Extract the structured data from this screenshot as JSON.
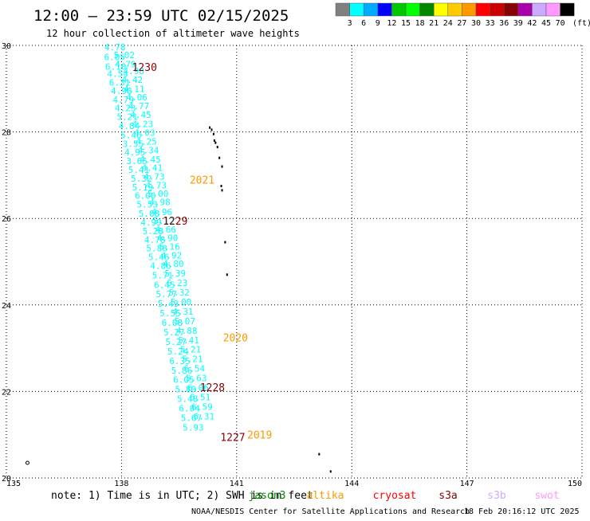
{
  "header": {
    "title": "12:00 — 23:59 UTC 02/15/2025",
    "subtitle": "12 hour collection of altimeter wave heights"
  },
  "colorbar": {
    "unit": "(ft)",
    "labels": [
      "3",
      "6",
      "9",
      "12",
      "15",
      "18",
      "21",
      "24",
      "27",
      "30",
      "33",
      "36",
      "39",
      "42",
      "45",
      "70"
    ],
    "colors": [
      "#808080",
      "#00ffff",
      "#00aaff",
      "#0000ff",
      "#00c800",
      "#00ff00",
      "#008800",
      "#ffff00",
      "#ffcc00",
      "#ff9900",
      "#ff0000",
      "#cc0000",
      "#880000",
      "#aa00aa",
      "#ccaaff",
      "#ff99ff",
      "#000000"
    ]
  },
  "footer": {
    "note": "note: 1) Time is in UTC; 2) SWH is in feet",
    "credit": "NOAA/NESDIS Center for Satellite Applications and Research",
    "timestamp": "18 Feb 20:16:12 UTC 2025",
    "satellites": [
      {
        "name": "jason3",
        "color": "#008800"
      },
      {
        "name": "altika",
        "color": "#ff9900"
      },
      {
        "name": "cryosat",
        "color": "#ff0000"
      },
      {
        "name": "s3a",
        "color": "#880000"
      },
      {
        "name": "s3b",
        "color": "#ccaaff"
      },
      {
        "name": "swot",
        "color": "#ff99ff"
      }
    ]
  },
  "chart_data": {
    "type": "scatter",
    "title": "12:00 — 23:59 UTC 02/15/2025",
    "subtitle": "12 hour collection of altimeter wave heights",
    "xlim": [
      135,
      150
    ],
    "ylim": [
      20,
      30
    ],
    "xticks": [
      "135",
      "138",
      "141",
      "144",
      "147",
      "150"
    ],
    "yticks": [
      "20",
      "22",
      "24",
      "26",
      "28",
      "30"
    ],
    "grid": true,
    "legend": "bottom",
    "wave_color": "#00ffff",
    "land_color": "#000000",
    "series": [
      {
        "name": "",
        "color": "#00ffff",
        "points": [
          {
            "x": 137.83,
            "y": 29.96,
            "v": "4.78"
          },
          {
            "x": 138.07,
            "y": 29.78,
            "v": "5.02"
          },
          {
            "x": 137.82,
            "y": 29.73,
            "v": "6.05"
          },
          {
            "x": 138.1,
            "y": 29.57,
            "v": "4.79"
          },
          {
            "x": 137.85,
            "y": 29.51,
            "v": "6.10"
          },
          {
            "x": 138.32,
            "y": 29.41,
            "v": "4.98"
          },
          {
            "x": 137.9,
            "y": 29.35,
            "v": "4.54"
          },
          {
            "x": 138.28,
            "y": 29.21,
            "v": "4.42"
          },
          {
            "x": 137.95,
            "y": 29.14,
            "v": "6.31"
          },
          {
            "x": 138.33,
            "y": 29.0,
            "v": "4.11"
          },
          {
            "x": 138.0,
            "y": 28.95,
            "v": "4.98"
          },
          {
            "x": 138.4,
            "y": 28.8,
            "v": "4.06"
          },
          {
            "x": 138.05,
            "y": 28.75,
            "v": "4.79"
          },
          {
            "x": 138.45,
            "y": 28.6,
            "v": "4.77"
          },
          {
            "x": 138.1,
            "y": 28.55,
            "v": "4.23"
          },
          {
            "x": 138.5,
            "y": 28.4,
            "v": "4.45"
          },
          {
            "x": 138.15,
            "y": 28.35,
            "v": "5.21"
          },
          {
            "x": 138.55,
            "y": 28.19,
            "v": "4.23"
          },
          {
            "x": 138.2,
            "y": 28.14,
            "v": "4.84"
          },
          {
            "x": 138.6,
            "y": 27.98,
            "v": "4.03"
          },
          {
            "x": 138.25,
            "y": 27.93,
            "v": "5.40"
          },
          {
            "x": 138.65,
            "y": 27.78,
            "v": "4.25"
          },
          {
            "x": 138.3,
            "y": 27.73,
            "v": "3.55"
          },
          {
            "x": 138.7,
            "y": 27.58,
            "v": "4.34"
          },
          {
            "x": 138.35,
            "y": 27.53,
            "v": "4.95"
          },
          {
            "x": 138.75,
            "y": 27.37,
            "v": "4.45"
          },
          {
            "x": 138.4,
            "y": 27.33,
            "v": "3.65"
          },
          {
            "x": 138.8,
            "y": 27.17,
            "v": "4.41"
          },
          {
            "x": 138.45,
            "y": 27.13,
            "v": "5.41"
          },
          {
            "x": 138.85,
            "y": 26.97,
            "v": "4.73"
          },
          {
            "x": 138.52,
            "y": 26.92,
            "v": "5.32"
          },
          {
            "x": 138.9,
            "y": 26.77,
            "v": "4.73"
          },
          {
            "x": 138.55,
            "y": 26.72,
            "v": "5.19"
          },
          {
            "x": 138.95,
            "y": 26.57,
            "v": "5.00"
          },
          {
            "x": 138.62,
            "y": 26.53,
            "v": "6.00"
          },
          {
            "x": 139.0,
            "y": 26.38,
            "v": "4.98"
          },
          {
            "x": 138.67,
            "y": 26.33,
            "v": "5.53"
          },
          {
            "x": 139.05,
            "y": 26.15,
            "v": "4.96"
          },
          {
            "x": 138.72,
            "y": 26.11,
            "v": "5.08"
          },
          {
            "x": 139.1,
            "y": 25.95,
            "v": "5.12"
          },
          {
            "x": 138.77,
            "y": 25.91,
            "v": "4.99"
          },
          {
            "x": 139.15,
            "y": 25.75,
            "v": "4.66"
          },
          {
            "x": 138.82,
            "y": 25.71,
            "v": "5.28"
          },
          {
            "x": 139.2,
            "y": 25.55,
            "v": "4.90"
          },
          {
            "x": 138.87,
            "y": 25.51,
            "v": "4.78"
          },
          {
            "x": 139.25,
            "y": 25.35,
            "v": "5.16"
          },
          {
            "x": 138.92,
            "y": 25.31,
            "v": "5.88"
          },
          {
            "x": 139.3,
            "y": 25.15,
            "v": "4.92"
          },
          {
            "x": 138.97,
            "y": 25.11,
            "v": "5.46"
          },
          {
            "x": 139.35,
            "y": 24.95,
            "v": "4.80"
          },
          {
            "x": 139.02,
            "y": 24.91,
            "v": "4.86"
          },
          {
            "x": 139.4,
            "y": 24.73,
            "v": "5.39"
          },
          {
            "x": 139.07,
            "y": 24.69,
            "v": "5.71"
          },
          {
            "x": 139.45,
            "y": 24.51,
            "v": "6.23"
          },
          {
            "x": 139.12,
            "y": 24.47,
            "v": "6.45"
          },
          {
            "x": 139.5,
            "y": 24.29,
            "v": "5.32"
          },
          {
            "x": 139.17,
            "y": 24.25,
            "v": "5.77"
          },
          {
            "x": 139.55,
            "y": 24.07,
            "v": "5.00"
          },
          {
            "x": 139.22,
            "y": 24.03,
            "v": "5.43"
          },
          {
            "x": 139.6,
            "y": 23.85,
            "v": "4.31"
          },
          {
            "x": 139.27,
            "y": 23.81,
            "v": "5.55"
          },
          {
            "x": 139.65,
            "y": 23.63,
            "v": "5.07"
          },
          {
            "x": 139.32,
            "y": 23.59,
            "v": "6.08"
          },
          {
            "x": 139.7,
            "y": 23.41,
            "v": "4.88"
          },
          {
            "x": 139.37,
            "y": 23.37,
            "v": "5.27"
          },
          {
            "x": 139.75,
            "y": 23.19,
            "v": "5.41"
          },
          {
            "x": 139.42,
            "y": 23.15,
            "v": "5.27"
          },
          {
            "x": 139.8,
            "y": 22.97,
            "v": "5.21"
          },
          {
            "x": 139.47,
            "y": 22.93,
            "v": "5.24"
          },
          {
            "x": 139.85,
            "y": 22.75,
            "v": "5.21"
          },
          {
            "x": 139.52,
            "y": 22.71,
            "v": "6.35"
          },
          {
            "x": 139.9,
            "y": 22.53,
            "v": "6.54"
          },
          {
            "x": 139.57,
            "y": 22.49,
            "v": "5.86"
          },
          {
            "x": 139.95,
            "y": 22.31,
            "v": "5.63"
          },
          {
            "x": 139.62,
            "y": 22.27,
            "v": "6.05"
          },
          {
            "x": 140.0,
            "y": 22.09,
            "v": "6.06"
          },
          {
            "x": 139.67,
            "y": 22.05,
            "v": "5.80"
          },
          {
            "x": 140.05,
            "y": 21.87,
            "v": "6.51"
          },
          {
            "x": 139.72,
            "y": 21.83,
            "v": "5.48"
          },
          {
            "x": 140.1,
            "y": 21.65,
            "v": "6.59"
          },
          {
            "x": 139.77,
            "y": 21.61,
            "v": "6.04"
          },
          {
            "x": 140.15,
            "y": 21.43,
            "v": "6.31"
          },
          {
            "x": 139.82,
            "y": 21.39,
            "v": "5.67"
          },
          {
            "x": 139.87,
            "y": 21.17,
            "v": "5.93"
          }
        ]
      }
    ],
    "time_labels": [
      {
        "text": "1230",
        "x": 138.6,
        "y": 29.5,
        "color": "#880000"
      },
      {
        "text": "2021",
        "x": 140.1,
        "y": 26.9,
        "color": "#ff9900"
      },
      {
        "text": "1229",
        "x": 139.4,
        "y": 25.95,
        "color": "#880000"
      },
      {
        "text": "2020",
        "x": 140.97,
        "y": 23.25,
        "color": "#ff9900"
      },
      {
        "text": "1228",
        "x": 140.37,
        "y": 22.1,
        "color": "#880000"
      },
      {
        "text": "2019",
        "x": 141.6,
        "y": 21.0,
        "color": "#ff9900"
      },
      {
        "text": "1227",
        "x": 140.9,
        "y": 20.95,
        "color": "#880000"
      }
    ],
    "land": [
      {
        "x": 140.3,
        "y": 28.1
      },
      {
        "x": 140.35,
        "y": 28.05
      },
      {
        "x": 140.4,
        "y": 27.95
      },
      {
        "x": 140.42,
        "y": 27.8
      },
      {
        "x": 140.45,
        "y": 27.75
      },
      {
        "x": 140.5,
        "y": 27.65
      },
      {
        "x": 140.6,
        "y": 26.75
      },
      {
        "x": 140.62,
        "y": 26.65
      },
      {
        "x": 140.7,
        "y": 25.45
      },
      {
        "x": 140.75,
        "y": 24.7
      },
      {
        "x": 140.55,
        "y": 27.4
      },
      {
        "x": 140.62,
        "y": 27.2
      },
      {
        "x": 143.15,
        "y": 20.55
      },
      {
        "x": 143.45,
        "y": 20.15
      }
    ]
  }
}
